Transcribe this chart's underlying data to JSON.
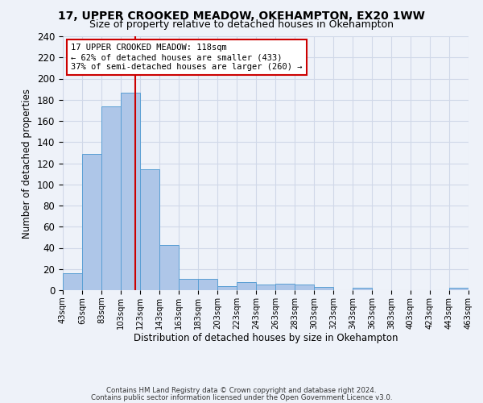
{
  "title1": "17, UPPER CROOKED MEADOW, OKEHAMPTON, EX20 1WW",
  "title2": "Size of property relative to detached houses in Okehampton",
  "xlabel": "Distribution of detached houses by size in Okehampton",
  "ylabel": "Number of detached properties",
  "footer1": "Contains HM Land Registry data © Crown copyright and database right 2024.",
  "footer2": "Contains public sector information licensed under the Open Government Licence v3.0.",
  "annotation_line1": "17 UPPER CROOKED MEADOW: 118sqm",
  "annotation_line2": "← 62% of detached houses are smaller (433)",
  "annotation_line3": "37% of semi-detached houses are larger (260) →",
  "property_size": 118,
  "bar_edges": [
    43,
    63,
    83,
    103,
    123,
    143,
    163,
    183,
    203,
    223,
    243,
    263,
    283,
    303,
    323,
    343,
    363,
    383,
    403,
    423,
    443
  ],
  "bar_values": [
    16,
    129,
    174,
    187,
    114,
    43,
    11,
    11,
    4,
    8,
    5,
    6,
    5,
    3,
    0,
    2,
    0,
    0,
    0,
    0,
    2
  ],
  "bar_color": "#aec6e8",
  "bar_edge_color": "#5a9fd4",
  "vline_color": "#cc0000",
  "annotation_box_edge": "#cc0000",
  "annotation_box_face": "#ffffff",
  "grid_color": "#d0d8e8",
  "background_color": "#eef2f9",
  "ylim": [
    0,
    240
  ],
  "yticks": [
    0,
    20,
    40,
    60,
    80,
    100,
    120,
    140,
    160,
    180,
    200,
    220,
    240
  ],
  "title_fontsize": 10,
  "subtitle_fontsize": 9
}
